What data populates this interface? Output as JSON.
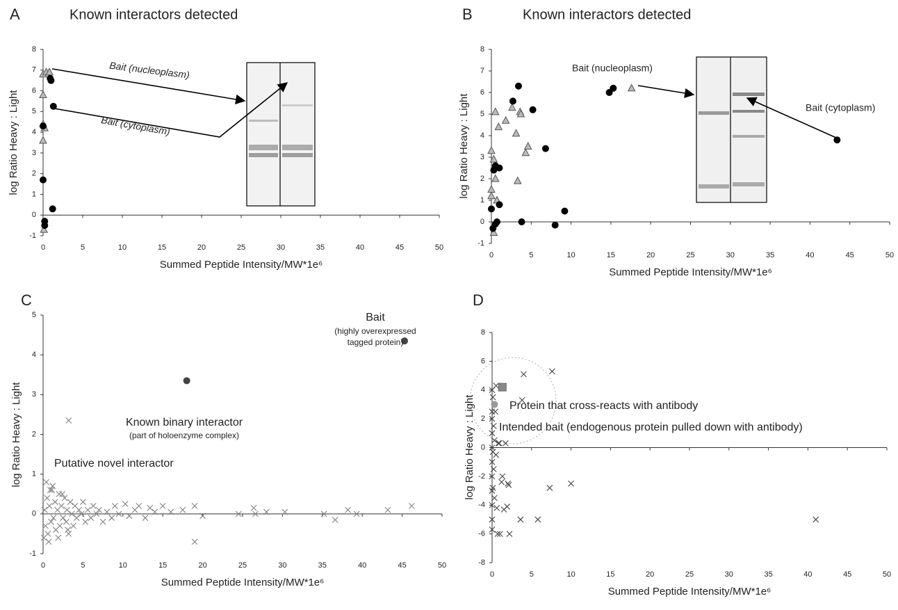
{
  "chart_data": [
    {
      "type": "scatter",
      "label": "A",
      "title": "Known interactors detected",
      "xlabel": "Summed Peptide Intensity/MW*1e⁶",
      "ylabel": "log Ratio Heavy : Light",
      "xlim": [
        0,
        50
      ],
      "ylim": [
        -1,
        8
      ],
      "xticks": [
        0,
        5,
        10,
        15,
        20,
        25,
        30,
        35,
        40,
        45,
        50
      ],
      "yticks": [
        -1,
        0,
        1,
        2,
        3,
        4,
        5,
        6,
        7,
        8
      ],
      "series": [
        {
          "marker": "triangle",
          "color": "#bbbbbb",
          "x": [
            0,
            0.4,
            0.8,
            0,
            0,
            0,
            0.2,
            0.1
          ],
          "values": [
            6.8,
            6.9,
            6.9,
            5.8,
            4.4,
            3.6,
            4.2,
            -0.7
          ]
        },
        {
          "marker": "circle",
          "color": "#000000",
          "x": [
            0.9,
            1,
            1.3,
            0,
            0,
            0.2,
            0.2,
            1.2
          ],
          "values": [
            6.6,
            6.5,
            5.25,
            4.3,
            1.7,
            -0.3,
            -0.5,
            0.3
          ]
        }
      ],
      "annotations": [
        "Bait (nucleoplasm)",
        "Bait (cytoplasm)"
      ]
    },
    {
      "type": "scatter",
      "label": "B",
      "title": "Known interactors detected",
      "xlabel": "Summed Peptide Intensity/MW*1e⁶",
      "ylabel": "log Ratio Heavy : Light",
      "xlim": [
        0,
        50
      ],
      "ylim": [
        -1,
        8
      ],
      "xticks": [
        0,
        5,
        10,
        15,
        20,
        25,
        30,
        35,
        40,
        45,
        50
      ],
      "yticks": [
        -1,
        0,
        1,
        2,
        3,
        4,
        5,
        6,
        7,
        8
      ],
      "series": [
        {
          "marker": "triangle",
          "color": "#bbbbbb",
          "x": [
            0,
            0,
            0,
            0.3,
            0.5,
            0.7,
            0.3,
            0.5,
            0.9,
            1.8,
            2.6,
            3.1,
            3.6,
            3.7,
            3.3,
            4.3,
            4.6,
            17.6
          ],
          "values": [
            3.3,
            1.5,
            1.2,
            2.9,
            2.0,
            1.0,
            -0.5,
            5.1,
            4.4,
            4.7,
            5.3,
            4.1,
            5.1,
            5.0,
            1.9,
            3.2,
            3.5,
            6.2
          ]
        },
        {
          "marker": "circle",
          "color": "#000000",
          "x": [
            0.3,
            0.5,
            1,
            0,
            0.2,
            0.5,
            0.7,
            1,
            2.7,
            3.4,
            5.2,
            3.8,
            6.8,
            8,
            9.2,
            14.8,
            15.3,
            43.4
          ],
          "values": [
            2.4,
            2.6,
            2.5,
            0.6,
            -0.3,
            -0.1,
            0,
            0.8,
            5.6,
            6.3,
            5.2,
            0,
            3.4,
            -0.15,
            0.5,
            6.0,
            6.2,
            3.8
          ]
        }
      ],
      "annotations": [
        "Bait (nucleoplasm)",
        "Bait (cytoplasm)"
      ]
    },
    {
      "type": "scatter",
      "label": "C",
      "xlabel": "Summed Peptide Intensity/MW*1e⁶",
      "ylabel": "log Ratio Heavy : Light",
      "xlim": [
        0,
        50
      ],
      "ylim": [
        -1,
        5
      ],
      "xticks": [
        0,
        5,
        10,
        15,
        20,
        25,
        30,
        35,
        40,
        45,
        50
      ],
      "yticks": [
        -1,
        0,
        1,
        2,
        3,
        4,
        5
      ],
      "series": [
        {
          "marker": "cross",
          "color": "#808080",
          "x": [
            0.2,
            0.3,
            0.5,
            0.6,
            0.8,
            1,
            1.1,
            1.3,
            1.5,
            1.6,
            1.8,
            2,
            2.1,
            2.3,
            2.5,
            2.7,
            2.9,
            3,
            3.2,
            3.4,
            3.6,
            3.8,
            4,
            4.2,
            4.5,
            4.8,
            5,
            5.3,
            5.6,
            6,
            6.3,
            6.7,
            7,
            7.5,
            8,
            8.6,
            9,
            9.5,
            10.3,
            10.8,
            11.5,
            12,
            12.8,
            13.4,
            14,
            15,
            16,
            17.5,
            19,
            19,
            20,
            24.5,
            26.4,
            26.6,
            28,
            30.3,
            35.2,
            36.6,
            38.2,
            39.3,
            43.2,
            46.2,
            0.4,
            0.7,
            1.2,
            1.9,
            2.4,
            3.1,
            0.1,
            0.9,
            3.2
          ],
          "values": [
            0.1,
            -0.3,
            0.4,
            -0.5,
            0.2,
            -0.2,
            0.6,
            -0.1,
            0.3,
            -0.4,
            0.1,
            0.5,
            -0.3,
            0.2,
            -0.1,
            0.4,
            -0.2,
            0.1,
            -0.5,
            0.3,
            0,
            -0.3,
            0.2,
            -0.1,
            0.1,
            0,
            0.3,
            -0.2,
            0.1,
            -0.1,
            0.2,
            0,
            0.1,
            -0.2,
            0.05,
            -0.1,
            0.2,
            0,
            0.25,
            -0.05,
            0.1,
            0.2,
            -0.1,
            0.15,
            0.05,
            0.2,
            0.05,
            0.1,
            0.2,
            -0.7,
            -0.05,
            0,
            0.15,
            0,
            0.05,
            0.05,
            0,
            -0.15,
            0.1,
            0,
            0.1,
            0.2,
            0.8,
            -0.7,
            0.7,
            -0.6,
            0.5,
            -0.4,
            -0.6,
            0.6,
            2.35
          ]
        },
        {
          "marker": "circle",
          "color": "#444444",
          "x": [
            18,
            45.3
          ],
          "values": [
            3.35,
            4.35
          ]
        }
      ],
      "annotations": [
        "Bait",
        "(highly overexpressed",
        "tagged protein)",
        "Known binary interactor",
        "(part of holoenzyme complex)",
        "Putative novel interactor"
      ]
    },
    {
      "type": "scatter",
      "label": "D",
      "xlabel": "Summed Peptide Intensity/MW*1e⁶",
      "ylabel": "log Ratio Heavy : Light",
      "xlim": [
        0,
        50
      ],
      "ylim": [
        -8,
        8
      ],
      "xticks": [
        0,
        5,
        10,
        15,
        20,
        25,
        30,
        35,
        40,
        45,
        50
      ],
      "yticks": [
        -8,
        -6,
        -4,
        -2,
        0,
        2,
        4,
        6,
        8
      ],
      "series": [
        {
          "marker": "cross",
          "color": "#444444",
          "x": [
            0,
            0,
            0,
            0,
            0,
            0,
            0,
            0,
            0,
            0,
            0.1,
            0.1,
            0.2,
            0.2,
            0.3,
            0.3,
            0.4,
            0.5,
            0.6,
            0.7,
            0.8,
            1,
            1.2,
            1.5,
            1.7,
            2,
            2.2,
            3.6,
            3.8,
            4,
            5.8,
            7.3,
            7.6,
            10,
            41,
            0.5,
            0.9,
            1.3,
            1.9,
            2.1,
            0,
            0.1
          ],
          "values": [
            4,
            2,
            1,
            0,
            -1,
            -2,
            -3,
            -4,
            -5,
            -5.7,
            3.5,
            -2.8,
            1.5,
            -1.5,
            0.5,
            -3.5,
            2.5,
            -0.5,
            -4.2,
            -6,
            0.3,
            -6,
            -2.4,
            -4.3,
            0.3,
            -2.5,
            -6,
            -5,
            3.3,
            5.1,
            -5,
            -2.8,
            5.3,
            -2.5,
            -5,
            4.3,
            0.3,
            -2,
            -4.1,
            -2.6,
            2.5,
            -0.3
          ]
        },
        {
          "marker": "square",
          "color": "#888888",
          "x": [
            1.3
          ],
          "values": [
            4.2
          ]
        },
        {
          "marker": "circle",
          "color": "#999999",
          "x": [
            0.3
          ],
          "values": [
            3.0
          ]
        }
      ],
      "annotations": [
        "Protein that cross-reacts with antibody",
        "Intended bait (endogenous protein pulled down with antibody)"
      ]
    }
  ]
}
